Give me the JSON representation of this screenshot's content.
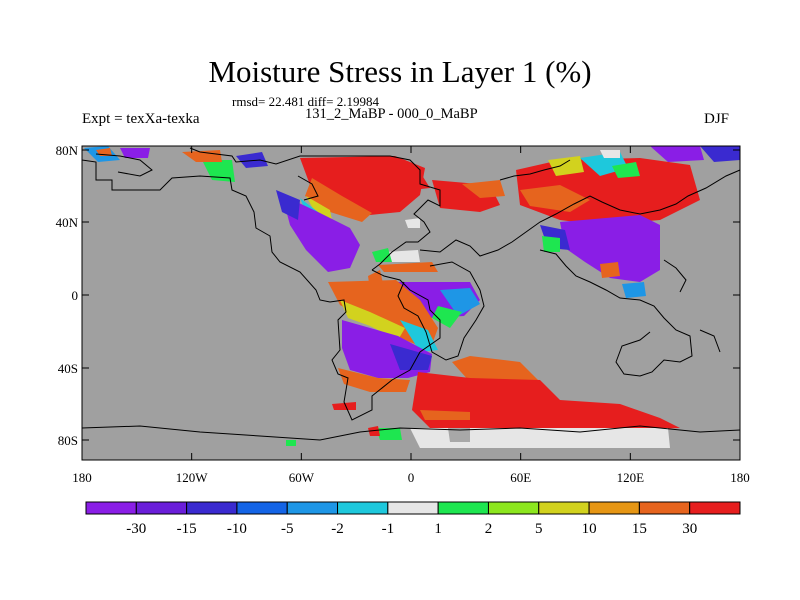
{
  "title": "Moisture Stress in Layer 1 (%)",
  "stats": "rmsd= 22.481 diff= 2.19984",
  "experiment": "Expt = texXa-texka",
  "subtitle": "131_2_MaBP - 000_0_MaBP",
  "season": "DJF",
  "ocean_color": "#a0a0a0",
  "y_axis": {
    "ticks": [
      "80N",
      "40N",
      "0",
      "40S",
      "80S"
    ]
  },
  "x_axis": {
    "ticks": [
      "180",
      "120W",
      "60W",
      "0",
      "60E",
      "120E",
      "180"
    ]
  },
  "colorbar": {
    "colors": [
      "#8a1ee6",
      "#6a1ed9",
      "#3a2ad0",
      "#1464e6",
      "#1e96e6",
      "#1ec8dc",
      "#e6e6e6",
      "#1ee650",
      "#8ce61e",
      "#d2d21e",
      "#e69614",
      "#e6641e",
      "#e61e1e"
    ],
    "labels": [
      "-30",
      "-15",
      "-10",
      "-5",
      "-2",
      "-1",
      "1",
      "2",
      "5",
      "10",
      "15",
      "30"
    ]
  }
}
